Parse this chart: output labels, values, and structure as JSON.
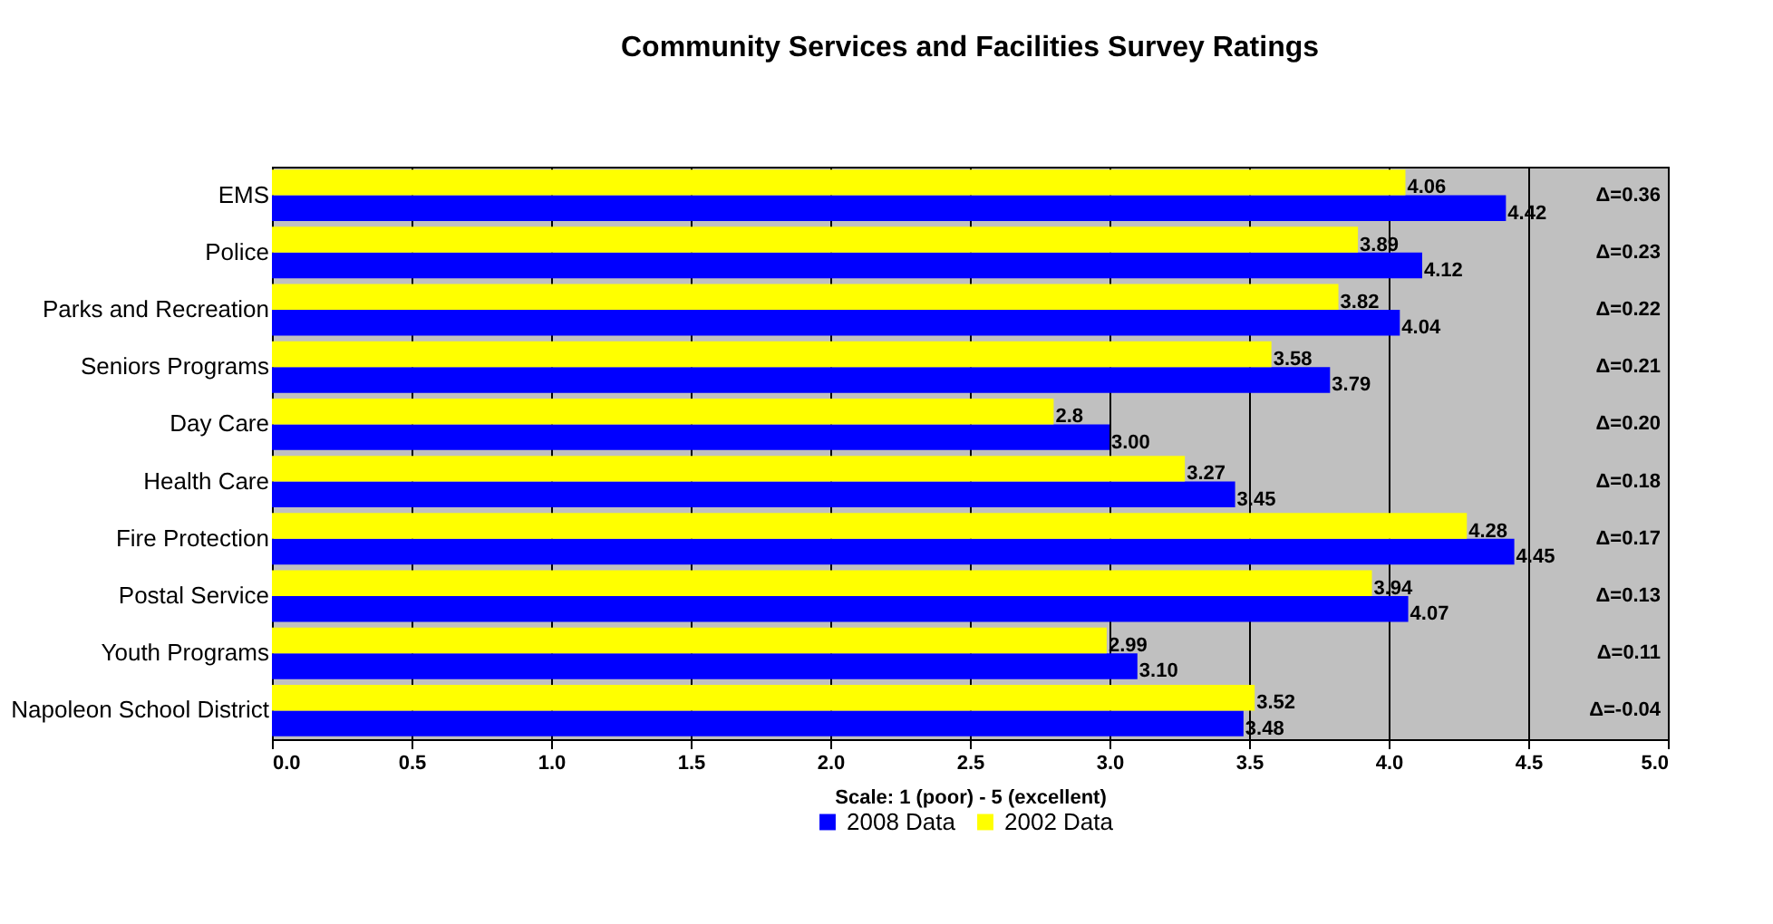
{
  "chart_data": {
    "type": "bar",
    "orientation": "horizontal",
    "title": "Community Services and Facilities Survey Ratings",
    "xlabel": "Scale: 1 (poor) - 5 (excellent)",
    "categories": [
      "EMS",
      "Police",
      "Parks and Recreation",
      "Seniors Programs",
      "Day Care",
      "Health Care",
      "Fire Protection",
      "Postal Service",
      "Youth Programs",
      "Napoleon School District"
    ],
    "series": [
      {
        "name": "2008 Data",
        "color": "#0000ff",
        "values": [
          4.42,
          4.12,
          4.04,
          3.79,
          3.0,
          3.45,
          4.45,
          4.07,
          3.1,
          3.48
        ],
        "value_labels": [
          "4.42",
          "4.12",
          "4.04",
          "3.79",
          "3.00",
          "3.45",
          "4.45",
          "4.07",
          "3.10",
          "3.48"
        ]
      },
      {
        "name": "2002 Data",
        "color": "#ffff00",
        "values": [
          4.06,
          3.89,
          3.82,
          3.58,
          2.8,
          3.27,
          4.28,
          3.94,
          2.99,
          3.52
        ],
        "value_labels": [
          "4.06",
          "3.89",
          "3.82",
          "3.58",
          "2.8",
          "3.27",
          "4.28",
          "3.94",
          "2.99",
          "3.52"
        ]
      }
    ],
    "xlim": [
      0,
      5
    ],
    "xticks": [
      {
        "value": 0,
        "label": "0.0"
      },
      0.5,
      {
        "value": 1,
        "label": "1.0"
      },
      1.5,
      {
        "value": 2,
        "label": "2.0"
      },
      2.5,
      {
        "value": 3,
        "label": "3.0"
      },
      3.5,
      {
        "value": 4,
        "label": "4.0"
      },
      4.5,
      {
        "value": 5,
        "label": "5.0"
      }
    ],
    "grid": "x",
    "legend": "bottom",
    "annotations": [
      "Δ=0.36",
      "Δ=0.23",
      "Δ=0.22",
      "Δ=0.21",
      "Δ=0.20",
      "Δ=0.18",
      "Δ=0.17",
      "Δ=0.13",
      "Δ=0.11",
      "Δ=-0.04"
    ]
  }
}
